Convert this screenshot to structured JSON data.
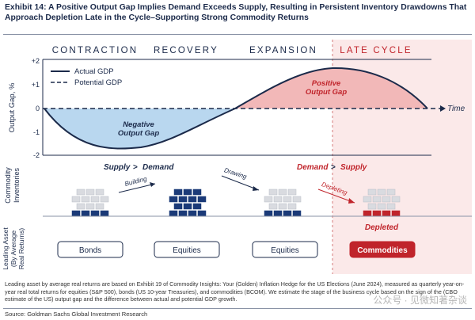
{
  "title": "Exhibit 14: A Positive Output Gap Implies Demand Exceeds Supply, Resulting in Persistent Inventory Drawdowns That Approach Depletion Late in the Cycle–Supporting Strong Commodity Returns",
  "phases": [
    "CONTRACTION",
    "RECOVERY",
    "EXPANSION",
    "LATE CYCLE"
  ],
  "y_axis_label": "Output Gap, %",
  "y_ticks": [
    "+2",
    "+1",
    "0",
    "-1",
    "-2"
  ],
  "time_label": "Time",
  "legend": {
    "actual": "Actual GDP",
    "potential": "Potential GDP"
  },
  "gap_labels": {
    "negative": "Negative\nOutput Gap",
    "positive": "Positive\nOutput Gap"
  },
  "inventories_label": "Commodity\nInventories",
  "supply_demand": {
    "left": {
      "a": "Supply",
      "op": ">",
      "b": "Demand"
    },
    "right": {
      "a": "Demand",
      "op": ">",
      "b": "Supply"
    }
  },
  "arrows": [
    "Building",
    "Drawing",
    "Depleting"
  ],
  "depleted_label": "Depleted",
  "leading_label": "Leading Asset\n(By Average\nReal Returns)",
  "assets": [
    "Bonds",
    "Equities",
    "Equities",
    "Commodities"
  ],
  "footnote": "Leading asset by average real returns are based on Exhibit 19 of Commodity Insights: Your (Golden) Inflation Hedge for the US Elections (June 2024), measured as quarterly year-on-year real total returns for equities (S&P 500), bonds (US 10-year Treasuries), and commodities (BCOM). We estimate the stage of the business cycle based on the sign of the (CBO estimate of the US) output gap and the difference between actual and potential GDP growth.",
  "source": "Source: Goldman Sachs Global Investment Research",
  "watermark": "公众号 · 见微知著杂谈",
  "colors": {
    "navy": "#1b3a78",
    "red": "#c0242b",
    "blue_fill": "#b9d7ef",
    "red_fill": "#f2b8b8",
    "late_bg": "#fbe9e9",
    "gray_brick": "#d9dbe0"
  }
}
